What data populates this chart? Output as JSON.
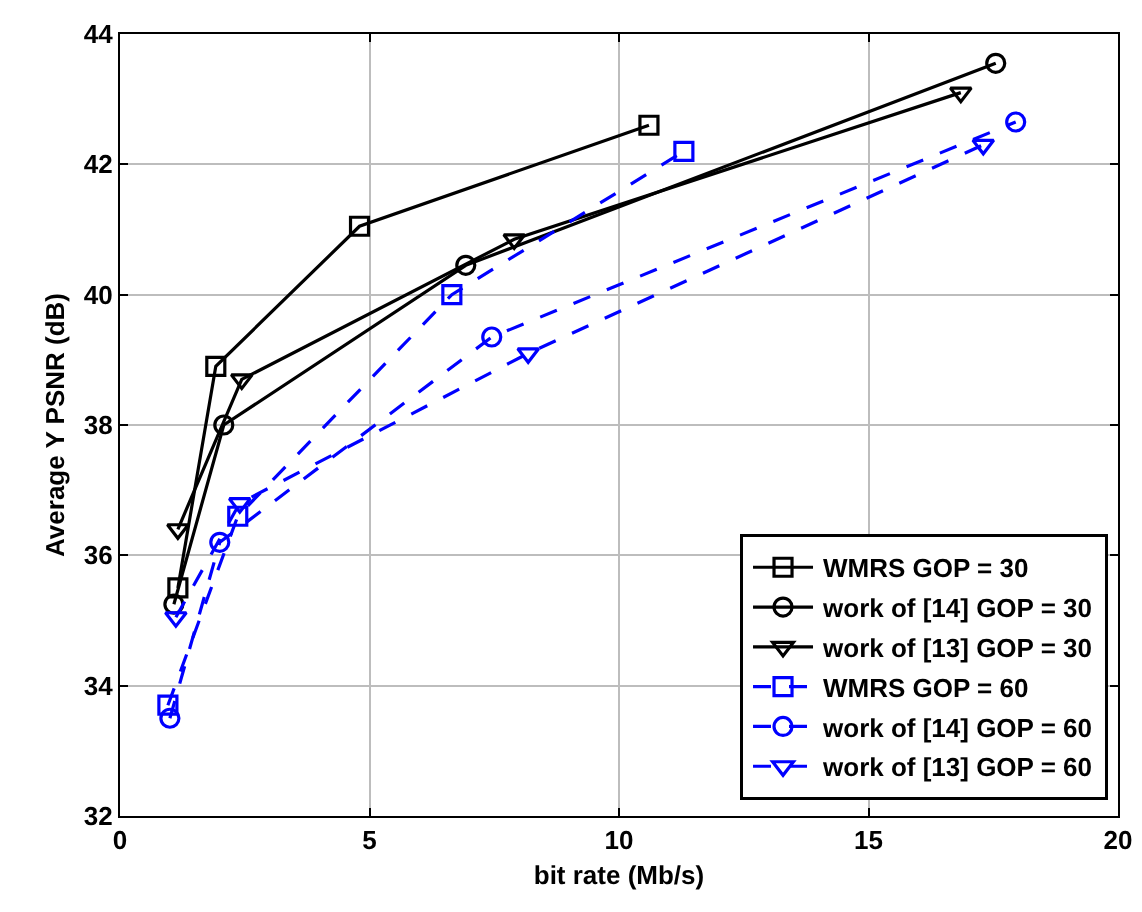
{
  "chart_data": {
    "type": "line",
    "xlabel": "bit rate (Mb/s)",
    "ylabel": "Average Y PSNR (dB)",
    "xlim": [
      0,
      20
    ],
    "xticks": [
      0,
      5,
      10,
      15,
      20
    ],
    "ylim": [
      32,
      44
    ],
    "yticks": [
      32,
      34,
      36,
      38,
      40,
      42,
      44
    ],
    "grid": true,
    "legend": "bottom right",
    "series": [
      {
        "name": "WMRS GOP = 30",
        "color": "#000000",
        "marker": "square",
        "line_style": "solid",
        "x": [
          1.16,
          1.92,
          4.8,
          10.6
        ],
        "values": [
          35.5,
          38.9,
          41.05,
          42.6
        ]
      },
      {
        "name": "work of [14] GOP = 30",
        "color": "#000000",
        "marker": "circle",
        "line_style": "solid",
        "x": [
          1.08,
          2.08,
          6.93,
          17.55
        ],
        "values": [
          35.25,
          38.0,
          40.45,
          43.55
        ]
      },
      {
        "name": "work of [13] GOP = 30",
        "color": "#000000",
        "marker": "triangle",
        "line_style": "solid",
        "x": [
          1.16,
          2.44,
          7.9,
          16.85
        ],
        "values": [
          36.4,
          38.7,
          40.85,
          43.1
        ]
      },
      {
        "name": "WMRS GOP = 60",
        "color": "#0000ff",
        "marker": "square",
        "line_style": "dashed",
        "x": [
          0.96,
          2.36,
          6.65,
          11.3
        ],
        "values": [
          33.7,
          36.6,
          40.0,
          42.2
        ]
      },
      {
        "name": "work of [14] GOP = 60",
        "color": "#0000ff",
        "marker": "circle",
        "line_style": "dashed",
        "x": [
          1.0,
          2.0,
          7.45,
          17.95
        ],
        "values": [
          33.5,
          36.2,
          39.35,
          42.65
        ]
      },
      {
        "name": "work of [13] GOP = 60",
        "color": "#0000ff",
        "marker": "triangle",
        "line_style": "dashed",
        "x": [
          1.12,
          2.4,
          8.18,
          17.3
        ],
        "values": [
          35.05,
          36.8,
          39.1,
          42.3
        ]
      }
    ]
  }
}
